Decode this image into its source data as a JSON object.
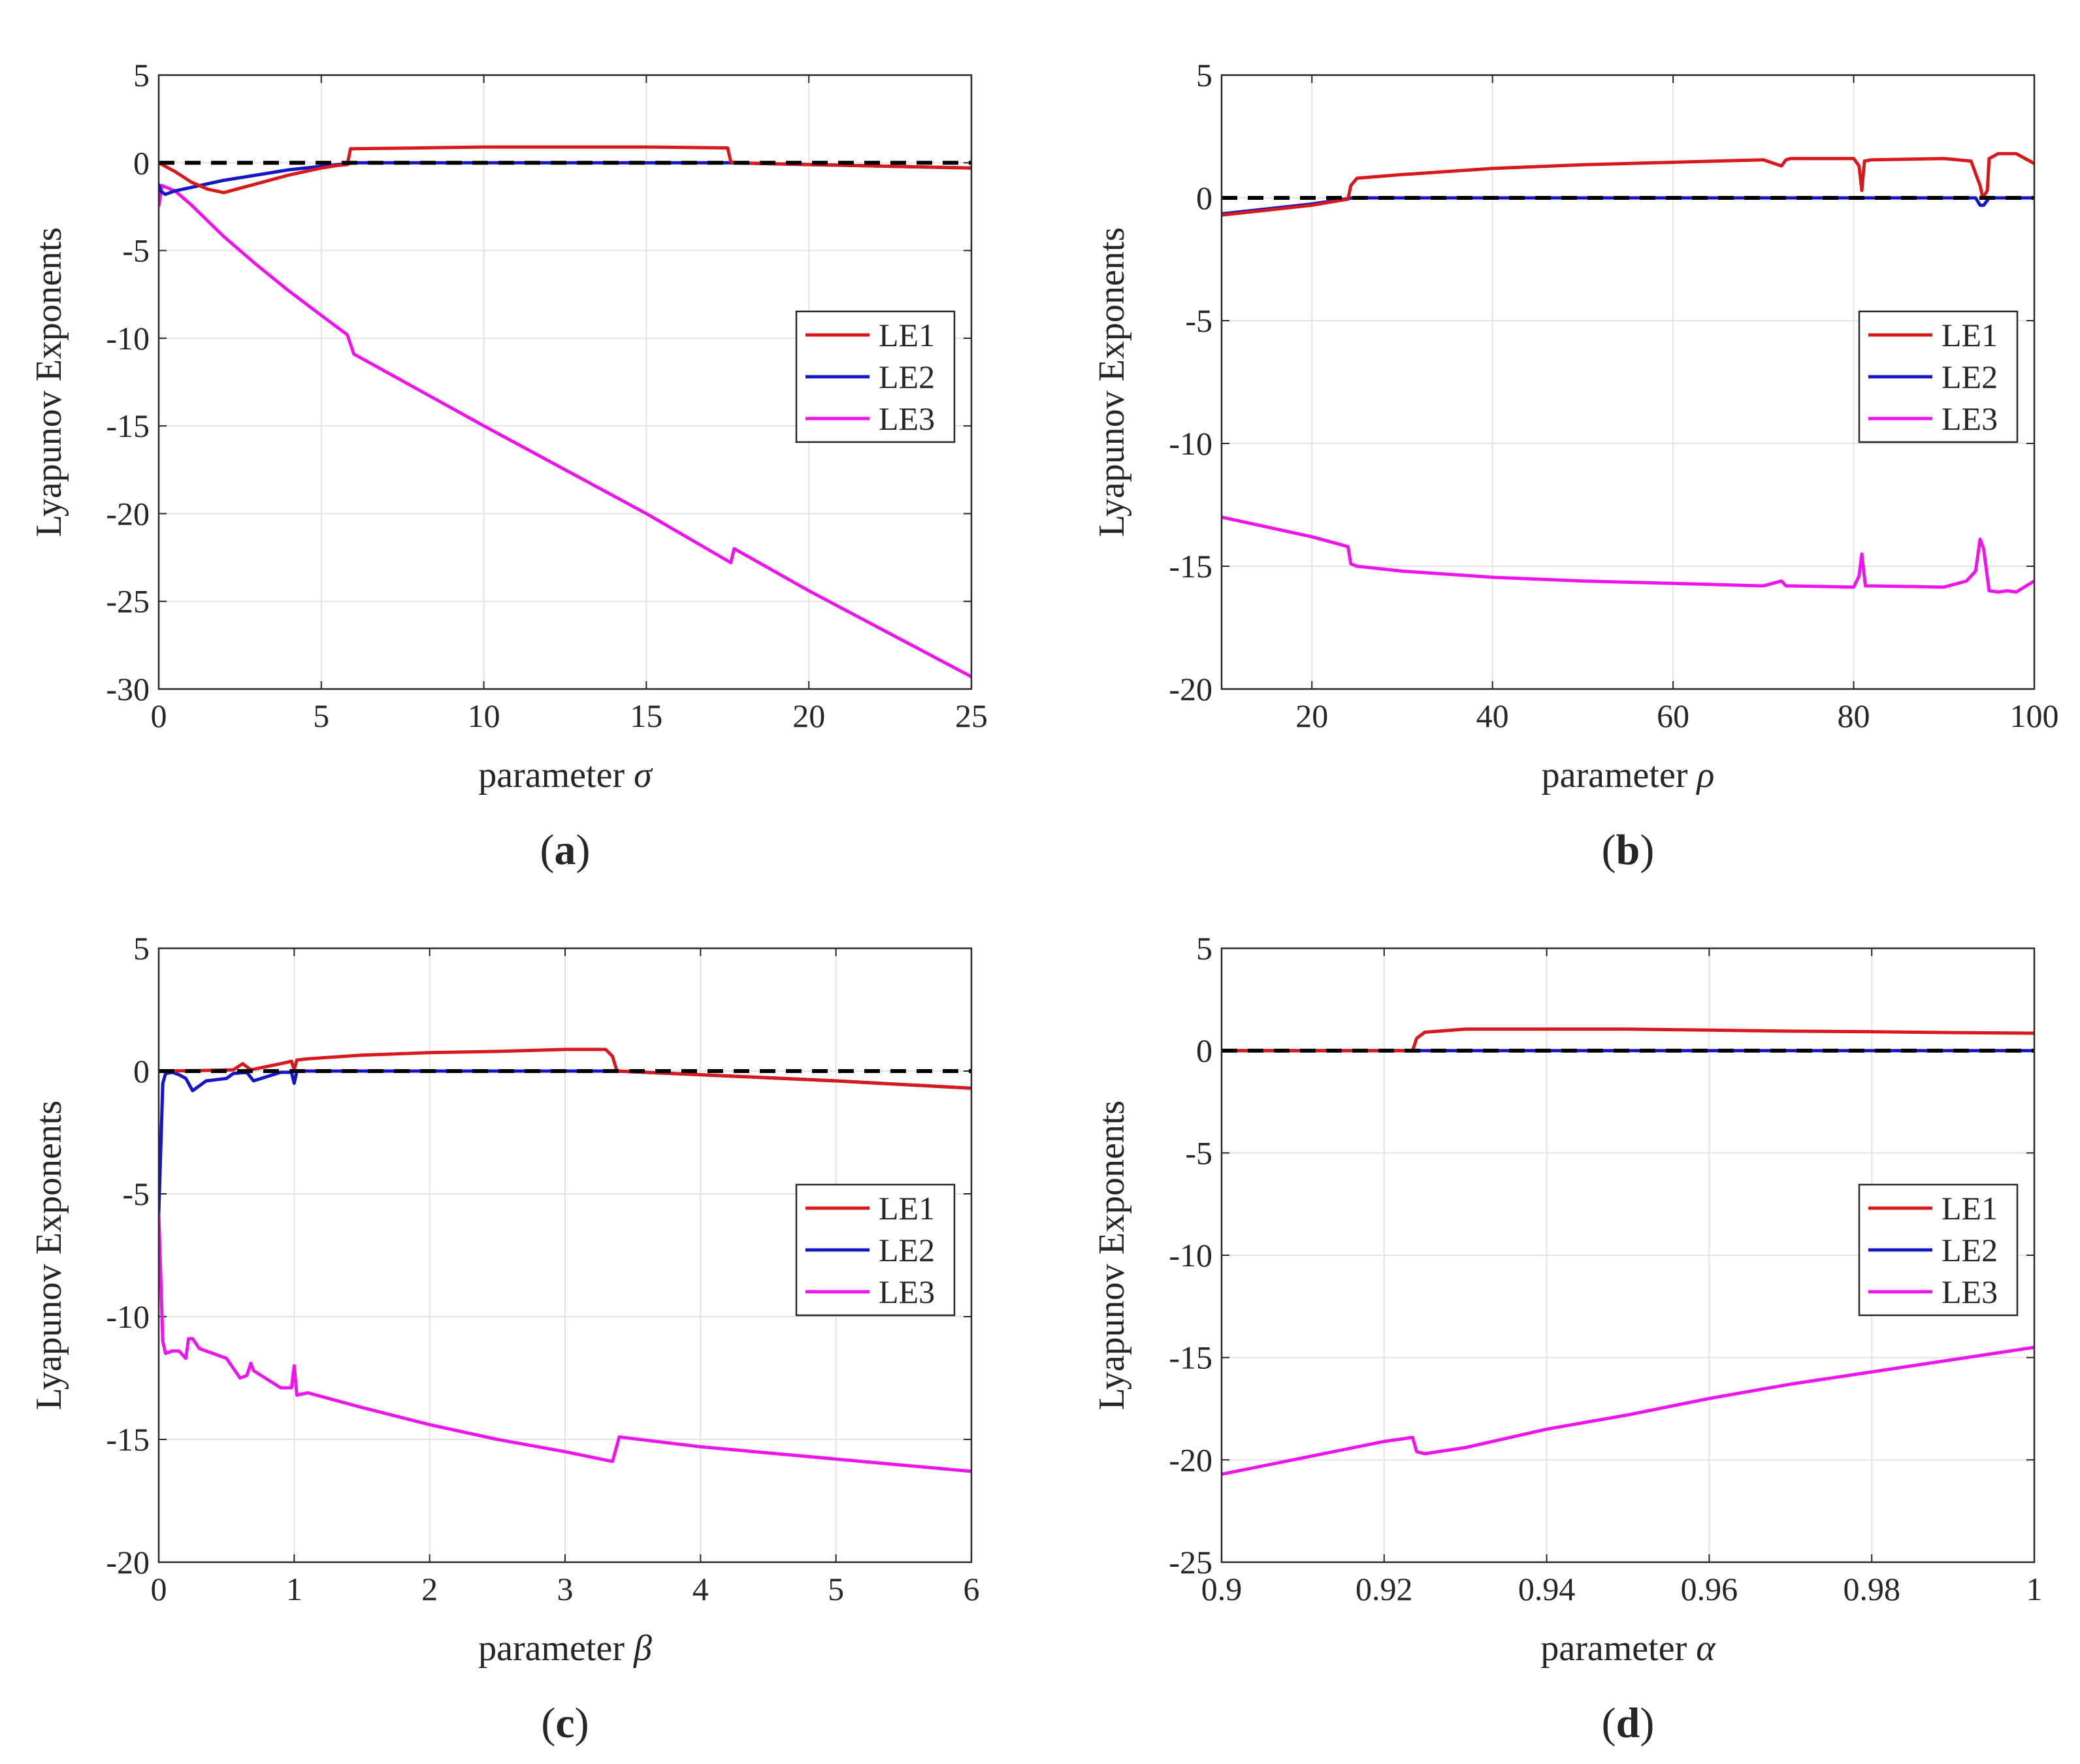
{
  "colors": {
    "le1": "#d7191c",
    "le2": "#1515c8",
    "le3": "#ee14ee",
    "zero": "#000000",
    "grid": "#e3e3e3",
    "axis": "#262626"
  },
  "chart_data": [
    {
      "type": "line",
      "panel_label": "a",
      "xlabel": "parameter ",
      "xsymbol": "σ",
      "ylabel": "Lyapunov Exponents",
      "xlim": [
        0,
        25
      ],
      "ylim": [
        -30,
        5
      ],
      "xticks": [
        0,
        5,
        10,
        15,
        20,
        25
      ],
      "xtick_labels": [
        "0",
        "5",
        "10",
        "15",
        "20",
        "25"
      ],
      "yticks": [
        -30,
        -25,
        -20,
        -15,
        -10,
        -5,
        0,
        5
      ],
      "ytick_labels": [
        "-30",
        "-25",
        "-20",
        "-15",
        "-10",
        "-5",
        "0",
        "5"
      ],
      "legend": [
        "LE1",
        "LE2",
        "LE3"
      ],
      "series": [
        {
          "name": "LE1",
          "x": [
            0,
            0.5,
            1,
            1.5,
            2,
            3,
            4,
            5,
            5.5,
            5.8,
            5.9,
            8,
            10,
            12,
            15,
            17.5,
            17.6,
            17.7,
            20,
            25
          ],
          "y": [
            0,
            -0.5,
            -1.1,
            -1.5,
            -1.7,
            -1.2,
            -0.7,
            -0.3,
            -0.15,
            -0.1,
            0.8,
            0.85,
            0.9,
            0.9,
            0.9,
            0.85,
            0.05,
            0,
            -0.1,
            -0.3
          ]
        },
        {
          "name": "LE2",
          "x": [
            0,
            0.05,
            0.2,
            0.5,
            1,
            1.5,
            2,
            3,
            4,
            5,
            5.8,
            6,
            10,
            15,
            17.6,
            20,
            25
          ],
          "y": [
            -1.2,
            -1.6,
            -1.8,
            -1.6,
            -1.4,
            -1.2,
            -1.0,
            -0.7,
            -0.4,
            -0.2,
            -0.05,
            0,
            0,
            0,
            0,
            -0.1,
            -0.3
          ]
        },
        {
          "name": "LE3",
          "x": [
            0,
            0.1,
            0.5,
            1,
            1.5,
            2,
            3,
            4,
            5,
            5.8,
            6,
            10,
            15,
            17.6,
            17.7,
            20,
            25
          ],
          "y": [
            -2.5,
            -1.3,
            -1.6,
            -2.4,
            -3.3,
            -4.2,
            -5.8,
            -7.3,
            -8.7,
            -9.8,
            -10.9,
            -15.0,
            -20.0,
            -22.8,
            -22.0,
            -24.4,
            -29.3
          ]
        },
        {
          "name": "zero",
          "x": [
            0,
            25
          ],
          "y": [
            0,
            0
          ]
        }
      ]
    },
    {
      "type": "line",
      "panel_label": "b",
      "xlabel": "parameter ",
      "xsymbol": "ρ",
      "ylabel": "Lyapunov Exponents",
      "xlim": [
        10,
        100
      ],
      "ylim": [
        -20,
        5
      ],
      "xticks": [
        20,
        40,
        60,
        80,
        100
      ],
      "xtick_labels": [
        "20",
        "40",
        "60",
        "80",
        "100"
      ],
      "yticks": [
        -20,
        -15,
        -10,
        -5,
        0,
        5
      ],
      "ytick_labels": [
        "-20",
        "-15",
        "-10",
        "-5",
        "0",
        "5"
      ],
      "legend": [
        "LE1",
        "LE2",
        "LE3"
      ],
      "series": [
        {
          "name": "LE1",
          "x": [
            10,
            20,
            24,
            24.3,
            25,
            30,
            40,
            50,
            60,
            70,
            72,
            72.5,
            73,
            80,
            80.6,
            80.9,
            81.2,
            82,
            90,
            93,
            94,
            94.3,
            94.8,
            95,
            96,
            98,
            100
          ],
          "y": [
            -0.7,
            -0.3,
            -0.05,
            0.5,
            0.8,
            0.95,
            1.2,
            1.35,
            1.45,
            1.55,
            1.3,
            1.55,
            1.6,
            1.6,
            1.3,
            0.3,
            1.5,
            1.55,
            1.6,
            1.5,
            0.5,
            0,
            0.3,
            1.6,
            1.8,
            1.8,
            1.4
          ]
        },
        {
          "name": "LE2",
          "x": [
            10,
            20,
            24.5,
            30,
            60,
            90,
            93.5,
            94,
            94.4,
            95,
            100
          ],
          "y": [
            -0.65,
            -0.25,
            0,
            0,
            0,
            0,
            0,
            -0.3,
            -0.3,
            0,
            0
          ]
        },
        {
          "name": "LE3",
          "x": [
            10,
            20,
            24,
            24.3,
            25,
            30,
            40,
            50,
            60,
            70,
            72,
            72.5,
            73,
            80,
            80.6,
            80.9,
            81.3,
            82,
            90,
            92.5,
            93.5,
            94,
            94.4,
            95,
            96,
            97,
            98,
            100
          ],
          "y": [
            -13.0,
            -13.8,
            -14.2,
            -14.9,
            -15.0,
            -15.2,
            -15.45,
            -15.6,
            -15.7,
            -15.8,
            -15.6,
            -15.8,
            -15.8,
            -15.85,
            -15.4,
            -14.5,
            -15.8,
            -15.8,
            -15.85,
            -15.6,
            -15.2,
            -13.9,
            -14.3,
            -16.0,
            -16.05,
            -16.0,
            -16.05,
            -15.6
          ]
        },
        {
          "name": "zero",
          "x": [
            10,
            100
          ],
          "y": [
            0,
            0
          ]
        }
      ]
    },
    {
      "type": "line",
      "panel_label": "c",
      "xlabel": "parameter ",
      "xsymbol": "β",
      "ylabel": "Lyapunov Exponents",
      "xlim": [
        0,
        6
      ],
      "ylim": [
        -20,
        5
      ],
      "xticks": [
        0,
        1,
        2,
        3,
        4,
        5,
        6
      ],
      "xtick_labels": [
        "0",
        "1",
        "2",
        "3",
        "4",
        "5",
        "6"
      ],
      "yticks": [
        -20,
        -15,
        -10,
        -5,
        0,
        5
      ],
      "ytick_labels": [
        "-20",
        "-15",
        "-10",
        "-5",
        "0",
        "5"
      ],
      "legend": [
        "LE1",
        "LE2",
        "LE3"
      ],
      "series": [
        {
          "name": "LE1",
          "x": [
            0,
            0.3,
            0.55,
            0.62,
            0.68,
            0.9,
            0.98,
            1.0,
            1.02,
            1.1,
            1.5,
            2,
            2.5,
            3,
            3.3,
            3.35,
            3.38,
            3.4,
            4,
            5,
            6
          ],
          "y": [
            0,
            0.02,
            0.05,
            0.3,
            0.05,
            0.3,
            0.4,
            0.05,
            0.45,
            0.5,
            0.65,
            0.75,
            0.8,
            0.88,
            0.88,
            0.6,
            0.05,
            0,
            -0.15,
            -0.4,
            -0.7
          ]
        },
        {
          "name": "LE2",
          "x": [
            0,
            0.03,
            0.05,
            0.1,
            0.15,
            0.2,
            0.25,
            0.35,
            0.5,
            0.55,
            0.65,
            0.7,
            0.9,
            0.98,
            1.0,
            1.02,
            1.2,
            2,
            3.38,
            4,
            5,
            6
          ],
          "y": [
            -5.8,
            -0.5,
            -0.1,
            -0.05,
            -0.15,
            -0.3,
            -0.8,
            -0.4,
            -0.3,
            -0.1,
            -0.05,
            -0.4,
            -0.05,
            -0.05,
            -0.5,
            0,
            0,
            0,
            0,
            -0.15,
            -0.4,
            -0.7
          ]
        },
        {
          "name": "LE3",
          "x": [
            0,
            0.03,
            0.05,
            0.1,
            0.15,
            0.2,
            0.22,
            0.25,
            0.3,
            0.5,
            0.6,
            0.65,
            0.68,
            0.7,
            0.9,
            0.98,
            1.0,
            1.02,
            1.1,
            1.5,
            2,
            2.5,
            3,
            3.35,
            3.38,
            3.4,
            4,
            5,
            6
          ],
          "y": [
            -5.8,
            -11.0,
            -11.5,
            -11.4,
            -11.4,
            -11.7,
            -10.9,
            -10.9,
            -11.3,
            -11.7,
            -12.5,
            -12.4,
            -11.9,
            -12.2,
            -12.9,
            -12.9,
            -12.0,
            -13.2,
            -13.1,
            -13.7,
            -14.4,
            -15.0,
            -15.5,
            -15.9,
            -15.3,
            -14.9,
            -15.3,
            -15.8,
            -16.3
          ]
        },
        {
          "name": "zero",
          "x": [
            0,
            6
          ],
          "y": [
            0,
            0
          ]
        }
      ]
    },
    {
      "type": "line",
      "panel_label": "d",
      "xlabel": "parameter ",
      "xsymbol": "α",
      "ylabel": "Lyapunov Exponents",
      "xlim": [
        0.9,
        1
      ],
      "ylim": [
        -25,
        5
      ],
      "xticks": [
        0.9,
        0.92,
        0.94,
        0.96,
        0.98,
        1
      ],
      "xtick_labels": [
        "0.9",
        "0.92",
        "0.94",
        "0.96",
        "0.98",
        "1"
      ],
      "yticks": [
        -25,
        -20,
        -15,
        -10,
        -5,
        0,
        5
      ],
      "ytick_labels": [
        "-25",
        "-20",
        "-15",
        "-10",
        "-5",
        "0",
        "5"
      ],
      "legend": [
        "LE1",
        "LE2",
        "LE3"
      ],
      "series": [
        {
          "name": "LE1",
          "x": [
            0.9,
            0.92,
            0.9235,
            0.924,
            0.925,
            0.93,
            0.94,
            0.95,
            0.96,
            0.97,
            0.98,
            0.99,
            1.0
          ],
          "y": [
            0,
            0,
            0,
            0.6,
            0.9,
            1.05,
            1.05,
            1.05,
            1.0,
            0.95,
            0.92,
            0.88,
            0.85
          ]
        },
        {
          "name": "LE2",
          "x": [
            0.9,
            1.0
          ],
          "y": [
            0,
            0
          ]
        },
        {
          "name": "LE3",
          "x": [
            0.9,
            0.91,
            0.92,
            0.9235,
            0.924,
            0.925,
            0.93,
            0.94,
            0.95,
            0.96,
            0.97,
            0.98,
            0.99,
            1.0
          ],
          "y": [
            -20.7,
            -19.9,
            -19.1,
            -18.9,
            -19.6,
            -19.7,
            -19.4,
            -18.5,
            -17.8,
            -17.0,
            -16.3,
            -15.7,
            -15.1,
            -14.5
          ]
        },
        {
          "name": "zero",
          "x": [
            0.9,
            1.0
          ],
          "y": [
            0,
            0
          ]
        }
      ]
    }
  ]
}
